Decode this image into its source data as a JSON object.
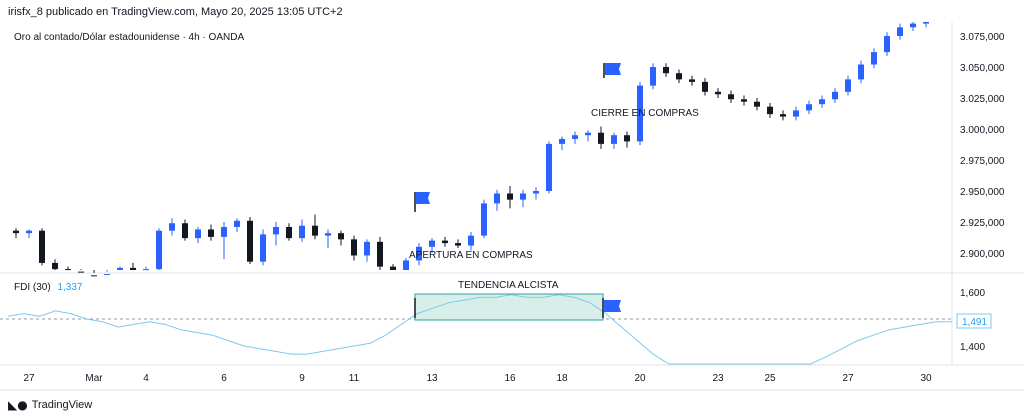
{
  "header": {
    "published": "irisfx_8 publicado en TradingView.com, Mayo 20, 2025 13:05 UTC+2",
    "symbol": "Oro al contado/Dólar estadounidense · 4h · OANDA"
  },
  "indicator": {
    "name": "FDI (30)",
    "value": "1,337",
    "current_badge": "1,491"
  },
  "brand": {
    "logo_icon": "tradingview-logo-icon",
    "label": "TradingView"
  },
  "colors": {
    "bull": "#2962ff",
    "bear": "#131722",
    "fdi_line": "#7ec8f0",
    "highlight": "#d8efe9",
    "highlight_border": "#26a69a",
    "flag": "#2962ff"
  },
  "chart_data": {
    "type": "candlestick",
    "price_axis": {
      "labels": [
        "3.075,000",
        "3.050,000",
        "3.025,000",
        "3.000,000",
        "2.975,000",
        "2.950,000",
        "2.925,000",
        "2.900,000"
      ],
      "values": [
        3075,
        3050,
        3025,
        3000,
        2975,
        2950,
        2925,
        2900
      ]
    },
    "fdi_axis": {
      "labels": [
        "1,600",
        "1,400"
      ],
      "values": [
        1.6,
        1.4
      ],
      "reference_level": 1.5
    },
    "x_ticks": [
      {
        "label": "27",
        "index": 1
      },
      {
        "label": "Mar",
        "index": 6
      },
      {
        "label": "4",
        "index": 10
      },
      {
        "label": "6",
        "index": 16
      },
      {
        "label": "9",
        "index": 22
      },
      {
        "label": "11",
        "index": 26
      },
      {
        "label": "13",
        "index": 32
      },
      {
        "label": "16",
        "index": 38
      },
      {
        "label": "18",
        "index": 42
      },
      {
        "label": "20",
        "index": 48
      },
      {
        "label": "23",
        "index": 54
      },
      {
        "label": "25",
        "index": 58
      },
      {
        "label": "27",
        "index": 64
      },
      {
        "label": "30",
        "index": 70
      }
    ],
    "candles": [
      [
        2918,
        2920,
        2912,
        2916
      ],
      [
        2916,
        2919,
        2912,
        2918
      ],
      [
        2918,
        2920,
        2890,
        2892
      ],
      [
        2892,
        2895,
        2884,
        2887
      ],
      [
        2887,
        2889,
        2883,
        2885
      ],
      [
        2885,
        2887,
        2880,
        2882
      ],
      [
        2882,
        2884,
        2876,
        2880
      ],
      [
        2880,
        2885,
        2878,
        2883
      ],
      [
        2884,
        2889,
        2881,
        2888
      ],
      [
        2888,
        2892,
        2884,
        2886
      ],
      [
        2886,
        2889,
        2883,
        2887
      ],
      [
        2887,
        2920,
        2885,
        2918
      ],
      [
        2918,
        2928,
        2914,
        2924
      ],
      [
        2924,
        2927,
        2910,
        2912
      ],
      [
        2912,
        2921,
        2908,
        2919
      ],
      [
        2919,
        2923,
        2910,
        2913
      ],
      [
        2913,
        2925,
        2895,
        2921
      ],
      [
        2921,
        2928,
        2917,
        2926
      ],
      [
        2926,
        2929,
        2891,
        2893
      ],
      [
        2893,
        2919,
        2890,
        2915
      ],
      [
        2915,
        2925,
        2906,
        2921
      ],
      [
        2921,
        2924,
        2910,
        2912
      ],
      [
        2912,
        2927,
        2909,
        2922
      ],
      [
        2922,
        2931,
        2911,
        2914
      ],
      [
        2914,
        2919,
        2904,
        2916
      ],
      [
        2916,
        2918,
        2906,
        2911
      ],
      [
        2911,
        2914,
        2894,
        2898
      ],
      [
        2898,
        2911,
        2893,
        2909
      ],
      [
        2909,
        2913,
        2886,
        2889
      ],
      [
        2889,
        2891,
        2879,
        2882
      ],
      [
        2882,
        2896,
        2879,
        2894
      ],
      [
        2894,
        2908,
        2890,
        2905
      ],
      [
        2905,
        2912,
        2900,
        2910
      ],
      [
        2910,
        2913,
        2905,
        2908
      ],
      [
        2908,
        2911,
        2904,
        2906
      ],
      [
        2906,
        2917,
        2902,
        2914
      ],
      [
        2914,
        2943,
        2912,
        2940
      ],
      [
        2940,
        2951,
        2934,
        2948
      ],
      [
        2948,
        2954,
        2936,
        2943
      ],
      [
        2943,
        2951,
        2937,
        2948
      ],
      [
        2948,
        2953,
        2943,
        2950
      ],
      [
        2950,
        2990,
        2948,
        2988
      ],
      [
        2988,
        2994,
        2983,
        2992
      ],
      [
        2992,
        2998,
        2988,
        2995
      ],
      [
        2995,
        2999,
        2990,
        2997
      ],
      [
        2997,
        3002,
        2984,
        2988
      ],
      [
        2988,
        2997,
        2984,
        2995
      ],
      [
        2995,
        2998,
        2985,
        2990
      ]
    ]
  }
}
